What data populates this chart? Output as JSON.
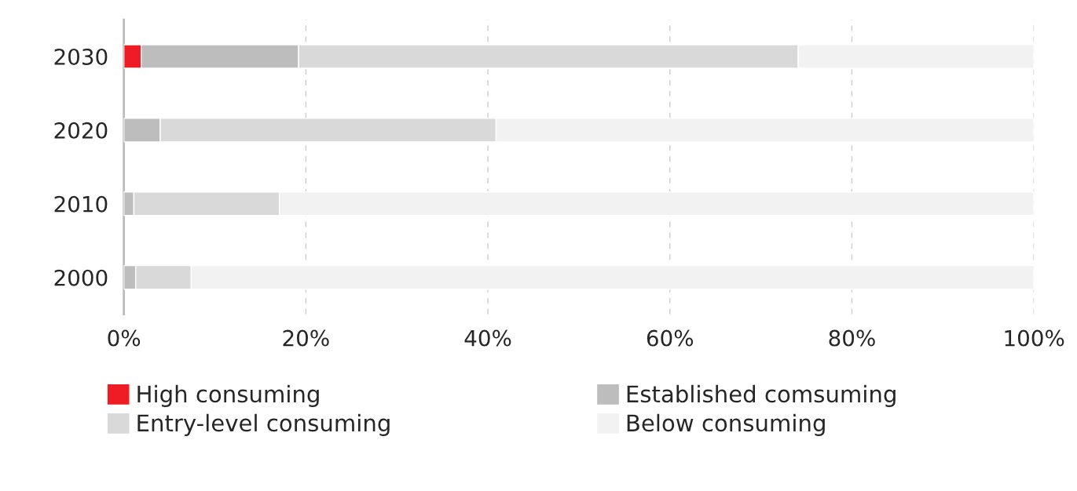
{
  "chart_data": {
    "type": "bar",
    "orientation": "horizontal",
    "stacked": true,
    "categories": [
      "2030",
      "2020",
      "2010",
      "2000"
    ],
    "series": [
      {
        "name": "High consuming",
        "color": "#ee1c25",
        "values": [
          1.9,
          0,
          0,
          0
        ]
      },
      {
        "name": "Established comsuming",
        "color": "#bdbdbd",
        "values": [
          17.3,
          4.0,
          1.1,
          1.3
        ]
      },
      {
        "name": "Entry-level consuming",
        "color": "#d9d9d9",
        "values": [
          54.9,
          36.9,
          16.0,
          6.1
        ]
      },
      {
        "name": "Below consuming",
        "color": "#f2f2f2",
        "values": [
          25.9,
          59.1,
          82.9,
          92.6
        ]
      }
    ],
    "xlim": [
      0,
      100
    ],
    "xticks": [
      {
        "value": 0,
        "label": "0%"
      },
      {
        "value": 20,
        "label": "20%"
      },
      {
        "value": 40,
        "label": "40%"
      },
      {
        "value": 60,
        "label": "60%"
      },
      {
        "value": 80,
        "label": "80%"
      },
      {
        "value": 100,
        "label": "100%"
      }
    ],
    "grid": "x",
    "legend": "bottom"
  }
}
